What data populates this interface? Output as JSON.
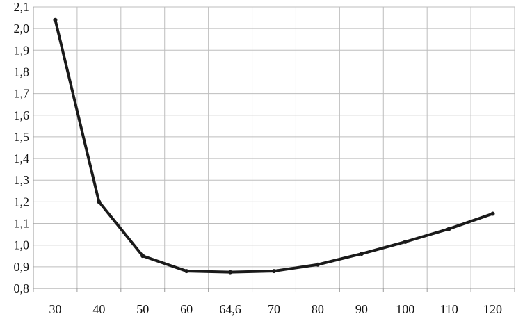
{
  "chart_data": {
    "type": "line",
    "title": "",
    "xlabel": "",
    "ylabel": "",
    "categories": [
      "30",
      "40",
      "50",
      "60",
      "64,6",
      "70",
      "80",
      "90",
      "100",
      "110",
      "120"
    ],
    "yticks": [
      "0,8",
      "0,9",
      "1,0",
      "1,1",
      "1,2",
      "1,3",
      "1,4",
      "1,5",
      "1,6",
      "1,7",
      "1,8",
      "1,9",
      "2,0",
      "2,1"
    ],
    "ylim": [
      0.8,
      2.1
    ],
    "grid": true,
    "legend": "none",
    "series": [
      {
        "values": [
          2.04,
          1.2,
          0.95,
          0.88,
          0.875,
          0.88,
          0.91,
          0.96,
          1.015,
          1.075,
          1.145
        ]
      }
    ],
    "colors": {
      "line": "#1a1a1a",
      "grid": "#bdbdbd",
      "axis": "#9a9a9a"
    }
  }
}
